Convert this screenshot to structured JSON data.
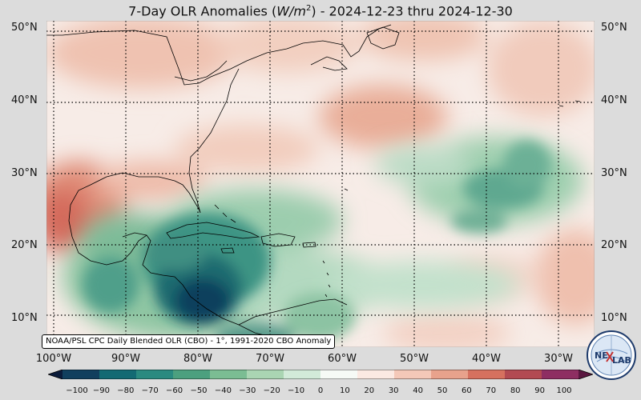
{
  "title": {
    "prefix": "7-Day OLR Anomalies (",
    "unit_base": "W/m",
    "unit_exp": "2",
    "suffix": ") - 2024-12-23 thru 2024-12-30"
  },
  "map": {
    "lon_range": [
      -101,
      -25
    ],
    "lat_range": [
      5.5,
      51.5
    ],
    "gridlines": "dotted",
    "lat_ticks": [
      "50°N",
      "40°N",
      "30°N",
      "20°N",
      "10°N"
    ],
    "lon_ticks": [
      "100°W",
      "90°W",
      "80°W",
      "70°W",
      "60°W",
      "50°W",
      "40°W",
      "30°W"
    ]
  },
  "credit": "NOAA/PSL CPC Daily Blended OLR (CBO) - 1°, 1991-2020 CBO Anomaly",
  "logo": {
    "text_left": "NE",
    "text_right": "LAB"
  },
  "colorbar": {
    "range": [
      -100,
      100
    ],
    "ticks": [
      "−100",
      "−90",
      "−80",
      "−70",
      "−60",
      "−50",
      "−40",
      "−30",
      "−20",
      "−10",
      "0",
      "10",
      "20",
      "30",
      "40",
      "50",
      "60",
      "70",
      "80",
      "90",
      "100"
    ],
    "colors": [
      "#0b1b3a",
      "#113f5e",
      "#136a73",
      "#2a8a80",
      "#4ca07f",
      "#7bbd93",
      "#aad5b3",
      "#d2ead9",
      "#f6faf6",
      "#fbe9e2",
      "#f4c8b8",
      "#e8a28c",
      "#d6715f",
      "#b24a52",
      "#8e2e62",
      "#5a1740"
    ]
  }
}
